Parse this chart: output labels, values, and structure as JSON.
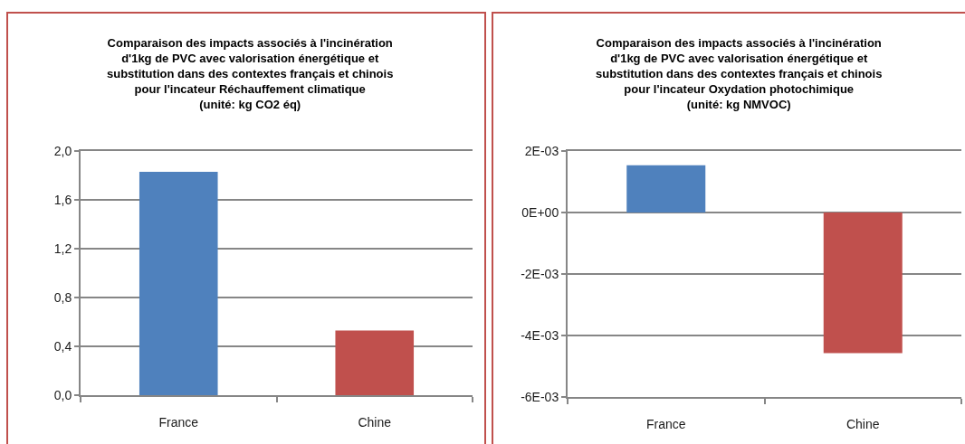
{
  "chart_data": [
    {
      "type": "bar",
      "title": "Comparaison des impacts associés à l'incinération\nd'1kg de PVC avec valorisation énergétique et\nsubstitution dans des contextes français et chinois\npour l'incateur Réchauffement climatique\n(unité: kg CO2 éq)",
      "categories": [
        "France",
        "Chine"
      ],
      "values": [
        1.83,
        0.53
      ],
      "colors": [
        "#4f81bd",
        "#c0504d"
      ],
      "ylim": [
        0,
        2
      ],
      "yticks": [
        {
          "value": 0,
          "label": "0,0"
        },
        {
          "value": 0.4,
          "label": "0,4"
        },
        {
          "value": 0.8,
          "label": "0,8"
        },
        {
          "value": 1.2,
          "label": "1,2"
        },
        {
          "value": 1.6,
          "label": "1,6"
        },
        {
          "value": 2,
          "label": "2,0"
        }
      ],
      "grid": "y"
    },
    {
      "type": "bar",
      "title": "Comparaison des impacts associés à l'incinération\nd'1kg de PVC avec valorisation énergétique et\nsubstitution dans des contextes français et chinois\npour l'incateur Oxydation photochimique\n(unité: kg NMVOC)",
      "categories": [
        "France",
        "Chine"
      ],
      "values": [
        0.00154,
        -0.00457
      ],
      "colors": [
        "#4f81bd",
        "#c0504d"
      ],
      "ylim": [
        -0.006,
        0.002
      ],
      "yticks": [
        {
          "value": -0.006,
          "label": "-6E-03"
        },
        {
          "value": -0.004,
          "label": "-4E-03"
        },
        {
          "value": -0.002,
          "label": "-2E-03"
        },
        {
          "value": 0,
          "label": "0E+00"
        },
        {
          "value": 0.002,
          "label": "2E-03"
        }
      ],
      "grid": "y"
    }
  ]
}
